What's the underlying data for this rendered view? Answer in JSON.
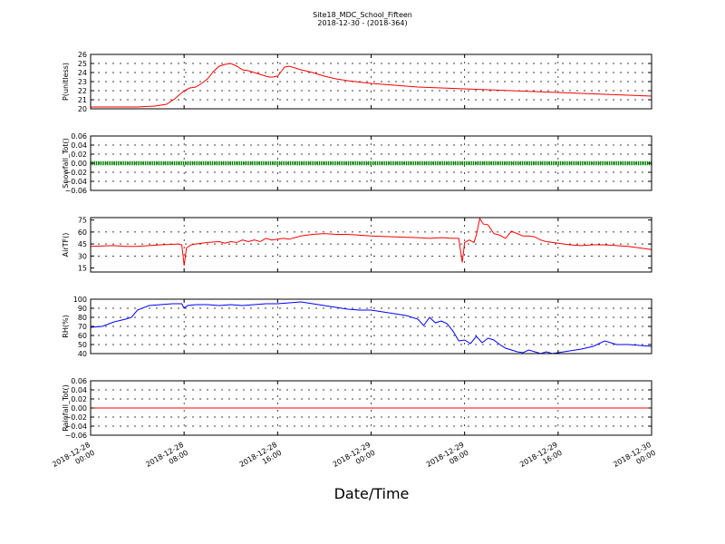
{
  "figure": {
    "title": "Site18_MDC_School_Fifteen",
    "subtitle": "2018-12-30 - (2018-364)",
    "xlabel": "Date/Time",
    "x_ticks": [
      [
        "2018-12-28",
        "00:00"
      ],
      [
        "2018-12-28",
        "08:00"
      ],
      [
        "2018-12-28",
        "16:00"
      ],
      [
        "2018-12-29",
        "00:00"
      ],
      [
        "2018-12-29",
        "08:00"
      ],
      [
        "2018-12-29",
        "16:00"
      ],
      [
        "2018-12-30",
        "00:00"
      ]
    ],
    "grid": true
  },
  "chart_data": [
    {
      "type": "line",
      "ylabel": "P(unitless)",
      "ylim": [
        20,
        26
      ],
      "yticks": [
        20,
        21,
        22,
        23,
        24,
        25,
        26
      ],
      "color": "#ff0000",
      "x_hours": [
        0,
        4,
        5.5,
        6.5,
        7.2,
        8,
        8.5,
        9,
        9.5,
        10,
        10.5,
        11,
        11.5,
        12,
        12.5,
        13,
        13.5,
        14,
        14.5,
        15,
        15.3,
        15.6,
        16,
        16.3,
        16.6,
        17,
        18,
        19,
        20,
        21,
        22,
        24,
        26,
        28,
        30,
        32,
        34,
        36,
        38,
        40,
        42,
        44,
        46,
        48
      ],
      "y": [
        20.2,
        20.2,
        20.3,
        20.5,
        21.1,
        22.0,
        22.3,
        22.4,
        22.8,
        23.3,
        24.1,
        24.7,
        24.9,
        25.0,
        24.7,
        24.3,
        24.2,
        24.0,
        23.8,
        23.6,
        23.5,
        23.5,
        23.6,
        24.1,
        24.6,
        24.7,
        24.3,
        24.0,
        23.6,
        23.3,
        23.1,
        22.8,
        22.6,
        22.4,
        22.3,
        22.2,
        22.1,
        22.0,
        21.9,
        21.8,
        21.7,
        21.6,
        21.5,
        21.4
      ]
    },
    {
      "type": "scatter",
      "ylabel": "Snowfall_Tot()",
      "ylim": [
        -0.06,
        0.06
      ],
      "yticks": [
        -0.06,
        -0.04,
        -0.02,
        0.0,
        0.02,
        0.04,
        0.06
      ],
      "ytick_labels": [
        "−0.06",
        "−0.04",
        "−0.02",
        "0.00",
        "0.02",
        "0.04",
        "0.06"
      ],
      "color": "#008000",
      "constant_value": 0.0
    },
    {
      "type": "line",
      "ylabel": "AirTF()",
      "ylim": [
        10,
        78
      ],
      "yticks": [
        15,
        30,
        45,
        60,
        75
      ],
      "color": "#ff0000",
      "x_hours": [
        0,
        2,
        3,
        4,
        6,
        7.5,
        7.8,
        8,
        8.2,
        8.6,
        9,
        10,
        11,
        11.5,
        12,
        12.5,
        13,
        13.5,
        14,
        14.5,
        15,
        15.5,
        16,
        16.5,
        17,
        18,
        19,
        20,
        21,
        22,
        23,
        24,
        26,
        28,
        29,
        30,
        31,
        31.5,
        31.8,
        32,
        32.4,
        32.8,
        33,
        33.3,
        33.6,
        34,
        34.5,
        35,
        35.5,
        36,
        36.5,
        37,
        37.5,
        38,
        38.5,
        39,
        39.5,
        40,
        41,
        42,
        43,
        44,
        45,
        46,
        47,
        48
      ],
      "y": [
        42,
        43,
        42,
        42,
        44,
        45,
        44,
        18,
        40,
        44,
        45,
        47,
        48,
        46,
        48,
        47,
        50,
        48,
        50,
        48,
        52,
        50,
        51,
        52,
        51,
        55,
        57,
        58,
        57,
        57,
        56,
        55,
        54,
        53,
        52,
        53,
        52,
        52,
        22,
        47,
        50,
        47,
        56,
        77,
        70,
        69,
        58,
        56,
        52,
        61,
        58,
        55,
        55,
        54,
        50,
        48,
        47,
        46,
        44,
        43,
        44,
        44,
        43,
        42,
        40,
        38
      ]
    },
    {
      "type": "line",
      "ylabel": "RH(%)",
      "ylim": [
        40,
        100
      ],
      "yticks": [
        40,
        50,
        60,
        70,
        80,
        90,
        100
      ],
      "color": "#0000ff",
      "x_hours": [
        0,
        1,
        2,
        3,
        3.5,
        4,
        5,
        6,
        7,
        7.8,
        8,
        8.3,
        9,
        10,
        11,
        12,
        13,
        14,
        15,
        16,
        17,
        18,
        19,
        20,
        21,
        22,
        23,
        24,
        25,
        26,
        27,
        28,
        28.5,
        29,
        29.5,
        30,
        30.5,
        31,
        31.5,
        32,
        32.5,
        33,
        33.5,
        34,
        34.5,
        35,
        35.5,
        36,
        36.5,
        37,
        37.5,
        38,
        38.5,
        39,
        39.5,
        40,
        40.5,
        41,
        42,
        43,
        44,
        45,
        46,
        47,
        48
      ],
      "y": [
        69,
        70,
        75,
        78,
        80,
        88,
        93,
        94,
        95,
        95,
        90,
        93,
        94,
        94,
        93,
        94,
        93,
        94,
        95,
        95,
        96,
        97,
        95,
        93,
        91,
        89,
        88,
        88,
        86,
        84,
        82,
        78,
        71,
        80,
        74,
        76,
        73,
        65,
        54,
        55,
        51,
        59,
        52,
        57,
        55,
        50,
        46,
        44,
        42,
        41,
        44,
        42,
        40,
        42,
        40,
        41,
        42,
        43,
        45,
        48,
        54,
        50,
        50,
        49,
        48
      ]
    },
    {
      "type": "line",
      "ylabel": "Rainfall_Tot()",
      "ylim": [
        -0.06,
        0.06
      ],
      "yticks": [
        -0.06,
        -0.04,
        -0.02,
        0.0,
        0.02,
        0.04,
        0.06
      ],
      "ytick_labels": [
        "−0.06",
        "−0.04",
        "−0.02",
        "0.00",
        "0.02",
        "0.04",
        "0.06"
      ],
      "color": "#ff0000",
      "constant_value": 0.0
    }
  ]
}
